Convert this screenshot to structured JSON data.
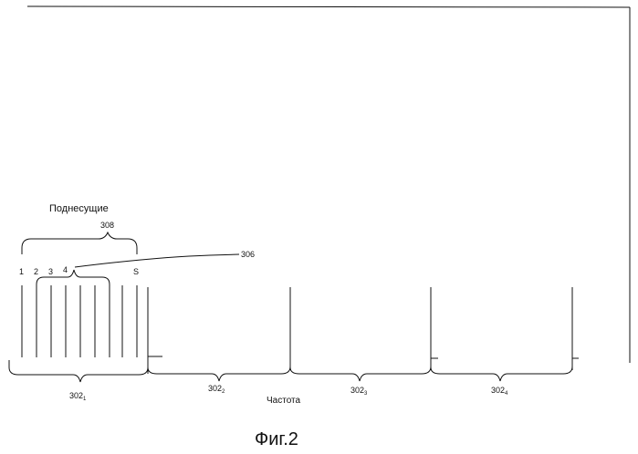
{
  "diagram": {
    "heading": "Поднесущие",
    "brace_label_top": "308",
    "callout_label": "306",
    "subcarrier_labels": [
      "1",
      "2",
      "3",
      "4",
      "S"
    ],
    "bands": [
      {
        "base": "302",
        "sub": "1"
      },
      {
        "base": "302",
        "sub": "2"
      },
      {
        "base": "302",
        "sub": "3"
      },
      {
        "base": "302",
        "sub": "4"
      }
    ],
    "axis_label": "Частота",
    "figure_caption": "Фиг.2"
  },
  "colors": {
    "ink": "#111111",
    "background": "#ffffff"
  }
}
